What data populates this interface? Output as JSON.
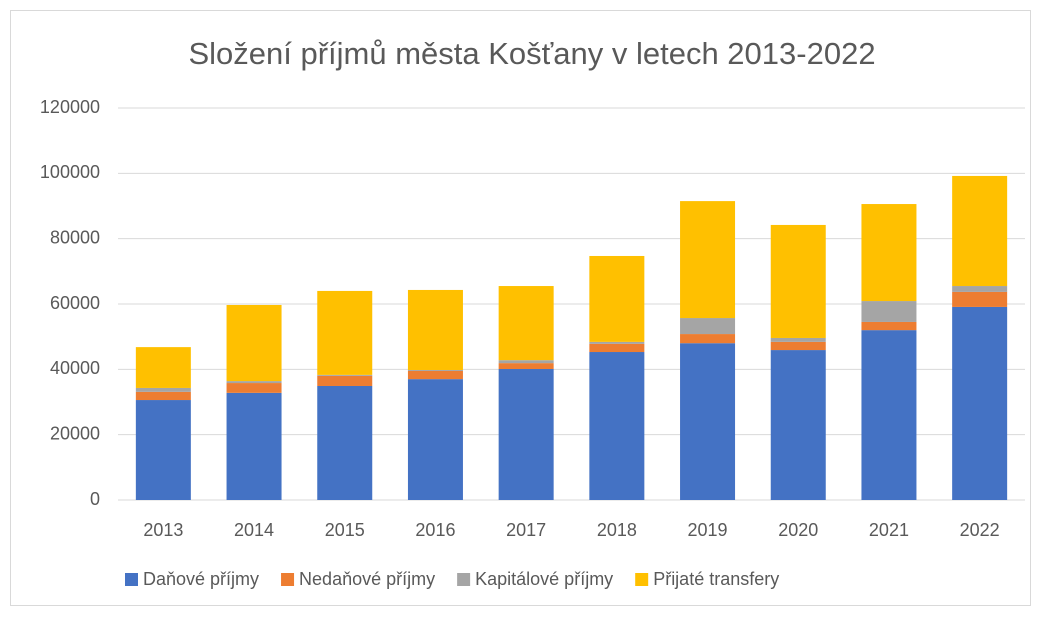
{
  "chart_data": {
    "type": "stacked_bar",
    "title": "Složení příjmů města Košťany v letech 2013-2022",
    "categories": [
      "2013",
      "2014",
      "2015",
      "2016",
      "2017",
      "2018",
      "2019",
      "2020",
      "2021",
      "2022"
    ],
    "series": [
      {
        "name": "Daňové příjmy",
        "color": "#4472c4",
        "values": [
          30600,
          32800,
          34900,
          37000,
          40100,
          45300,
          48000,
          45900,
          52000,
          59100
        ]
      },
      {
        "name": "Nedaňové příjmy",
        "color": "#ed7d31",
        "values": [
          2500,
          3000,
          3100,
          2500,
          1800,
          2500,
          2800,
          2500,
          2500,
          4600
        ]
      },
      {
        "name": "Kapitálové příjmy",
        "color": "#a5a5a5",
        "values": [
          1200,
          600,
          300,
          300,
          900,
          600,
          4900,
          1200,
          6400,
          1800
        ]
      },
      {
        "name": "Přijaté transfery",
        "color": "#ffc000",
        "values": [
          12500,
          23300,
          25700,
          24500,
          22700,
          26300,
          35800,
          34600,
          29700,
          33700
        ]
      }
    ],
    "ylim": [
      0,
      120000
    ],
    "yticks": [
      0,
      20000,
      40000,
      60000,
      80000,
      100000,
      120000
    ],
    "grid": true,
    "legend": "bottom"
  }
}
